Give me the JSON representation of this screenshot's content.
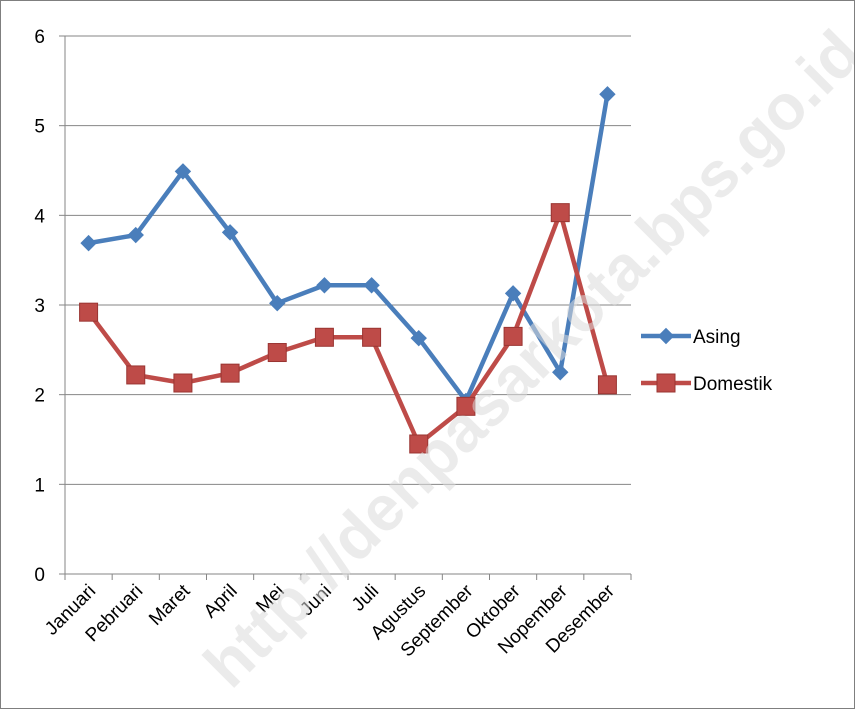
{
  "chart_data": {
    "type": "line",
    "categories": [
      "Januari",
      "Pebruari",
      "Maret",
      "April",
      "Mei",
      "Juni",
      "Juli",
      "Agustus",
      "September",
      "Oktober",
      "Nopember",
      "Desember"
    ],
    "series": [
      {
        "name": "Asing",
        "color": "#4a7ebb",
        "marker": "diamond",
        "values": [
          3.69,
          3.78,
          4.49,
          3.81,
          3.02,
          3.22,
          3.22,
          2.63,
          1.93,
          3.13,
          2.25,
          5.35
        ]
      },
      {
        "name": "Domestik",
        "color": "#be4b48",
        "marker": "square",
        "values": [
          2.92,
          2.22,
          2.13,
          2.24,
          2.47,
          2.64,
          2.64,
          1.45,
          1.87,
          2.65,
          4.03,
          2.11
        ]
      }
    ],
    "ylim": [
      0,
      6
    ],
    "yticks": [
      0,
      1,
      2,
      3,
      4,
      5,
      6
    ],
    "grid": "horizontal",
    "legend_position": "right",
    "title": "",
    "xlabel": "",
    "ylabel": ""
  },
  "watermark": "http://denpasarkota.bps.go.id"
}
